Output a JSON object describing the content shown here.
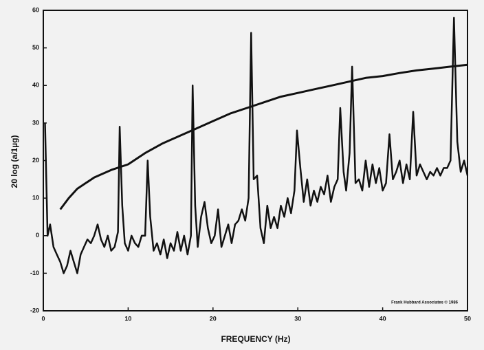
{
  "chart_data": {
    "type": "line",
    "xlabel": "FREQUENCY (Hz)",
    "ylabel": "20 log (a/1µg)",
    "annotation": "Frank Hubbard Associates © 1986",
    "xlim": [
      0,
      50
    ],
    "ylim": [
      -20,
      60
    ],
    "xticks": [
      0,
      10,
      20,
      30,
      40,
      50
    ],
    "yticks": [
      -20,
      -10,
      0,
      10,
      20,
      30,
      40,
      50,
      60
    ],
    "series": [
      {
        "color": "#111111",
        "x": [
          0.2,
          0.5,
          0.8,
          1.2,
          1.6,
          2.0,
          2.4,
          2.8,
          3.2,
          3.6,
          4.0,
          4.4,
          4.8,
          5.2,
          5.6,
          6.0,
          6.4,
          6.8,
          7.2,
          7.6,
          8.0,
          8.4,
          8.8,
          9.0,
          9.3,
          9.6,
          10.0,
          10.4,
          10.8,
          11.2,
          11.6,
          12.0,
          12.3,
          12.6,
          13.0,
          13.4,
          13.8,
          14.2,
          14.6,
          15.0,
          15.4,
          15.8,
          16.2,
          16.6,
          17.0,
          17.4,
          17.6,
          17.9,
          18.2,
          18.6,
          19.0,
          19.4,
          19.8,
          20.2,
          20.6,
          21.0,
          21.4,
          21.8,
          22.2,
          22.6,
          23.0,
          23.4,
          23.8,
          24.2,
          24.5,
          24.8,
          25.2,
          25.6,
          26.0,
          26.4,
          26.8,
          27.2,
          27.6,
          28.0,
          28.4,
          28.8,
          29.2,
          29.6,
          29.9,
          30.3,
          30.7,
          31.1,
          31.5,
          31.9,
          32.3,
          32.7,
          33.1,
          33.5,
          33.9,
          34.3,
          34.7,
          35.0,
          35.4,
          35.7,
          36.1,
          36.4,
          36.8,
          37.2,
          37.6,
          38.0,
          38.4,
          38.8,
          39.2,
          39.6,
          40.0,
          40.4,
          40.8,
          41.2,
          41.6,
          42.0,
          42.4,
          42.8,
          43.2,
          43.6,
          44.0,
          44.4,
          44.8,
          45.2,
          45.6,
          46.0,
          46.4,
          46.8,
          47.2,
          47.6,
          48.0,
          48.4,
          48.8,
          49.2,
          49.6,
          50.0
        ],
        "values": [
          30,
          0,
          3,
          -3,
          -5,
          -7,
          -10,
          -8,
          -4,
          -7,
          -10,
          -5,
          -3,
          -1,
          -2,
          0,
          3,
          -1,
          -3,
          0,
          -4,
          -3,
          1,
          29,
          8,
          -2,
          -4,
          0,
          -2,
          -3,
          0,
          0,
          20,
          5,
          -4,
          -2,
          -5,
          -1,
          -6,
          -2,
          -4,
          1,
          -4,
          0,
          -5,
          0,
          40,
          8,
          -3,
          5,
          9,
          2,
          -2,
          0,
          7,
          -3,
          0,
          3,
          -2,
          3,
          4,
          7,
          4,
          10,
          54,
          15,
          16,
          2,
          -2,
          8,
          2,
          5,
          2,
          8,
          5,
          10,
          6,
          12,
          28,
          18,
          9,
          15,
          8,
          12,
          9,
          13,
          11,
          16,
          9,
          13,
          15,
          34,
          17,
          12,
          22,
          45,
          14,
          15,
          12,
          20,
          13,
          19,
          14,
          18,
          12,
          14,
          27,
          15,
          17,
          20,
          14,
          19,
          15,
          33,
          16,
          19,
          17,
          15,
          17,
          16,
          18,
          16,
          18,
          18,
          20,
          58,
          25,
          17,
          20,
          16
        ]
      },
      {
        "color": "#111111",
        "x": [
          2,
          3,
          4,
          5,
          6,
          8,
          10,
          12,
          14,
          16,
          18,
          20,
          22,
          24,
          26,
          28,
          30,
          32,
          34,
          36,
          38,
          40,
          42,
          44,
          46,
          48,
          50
        ],
        "values": [
          7,
          10,
          12.5,
          14,
          15.5,
          17.5,
          19,
          22,
          24.5,
          26.5,
          28.5,
          30.5,
          32.5,
          34,
          35.5,
          37,
          38,
          39,
          40,
          41,
          42,
          42.5,
          43.3,
          44,
          44.5,
          45,
          45.5
        ]
      }
    ]
  }
}
